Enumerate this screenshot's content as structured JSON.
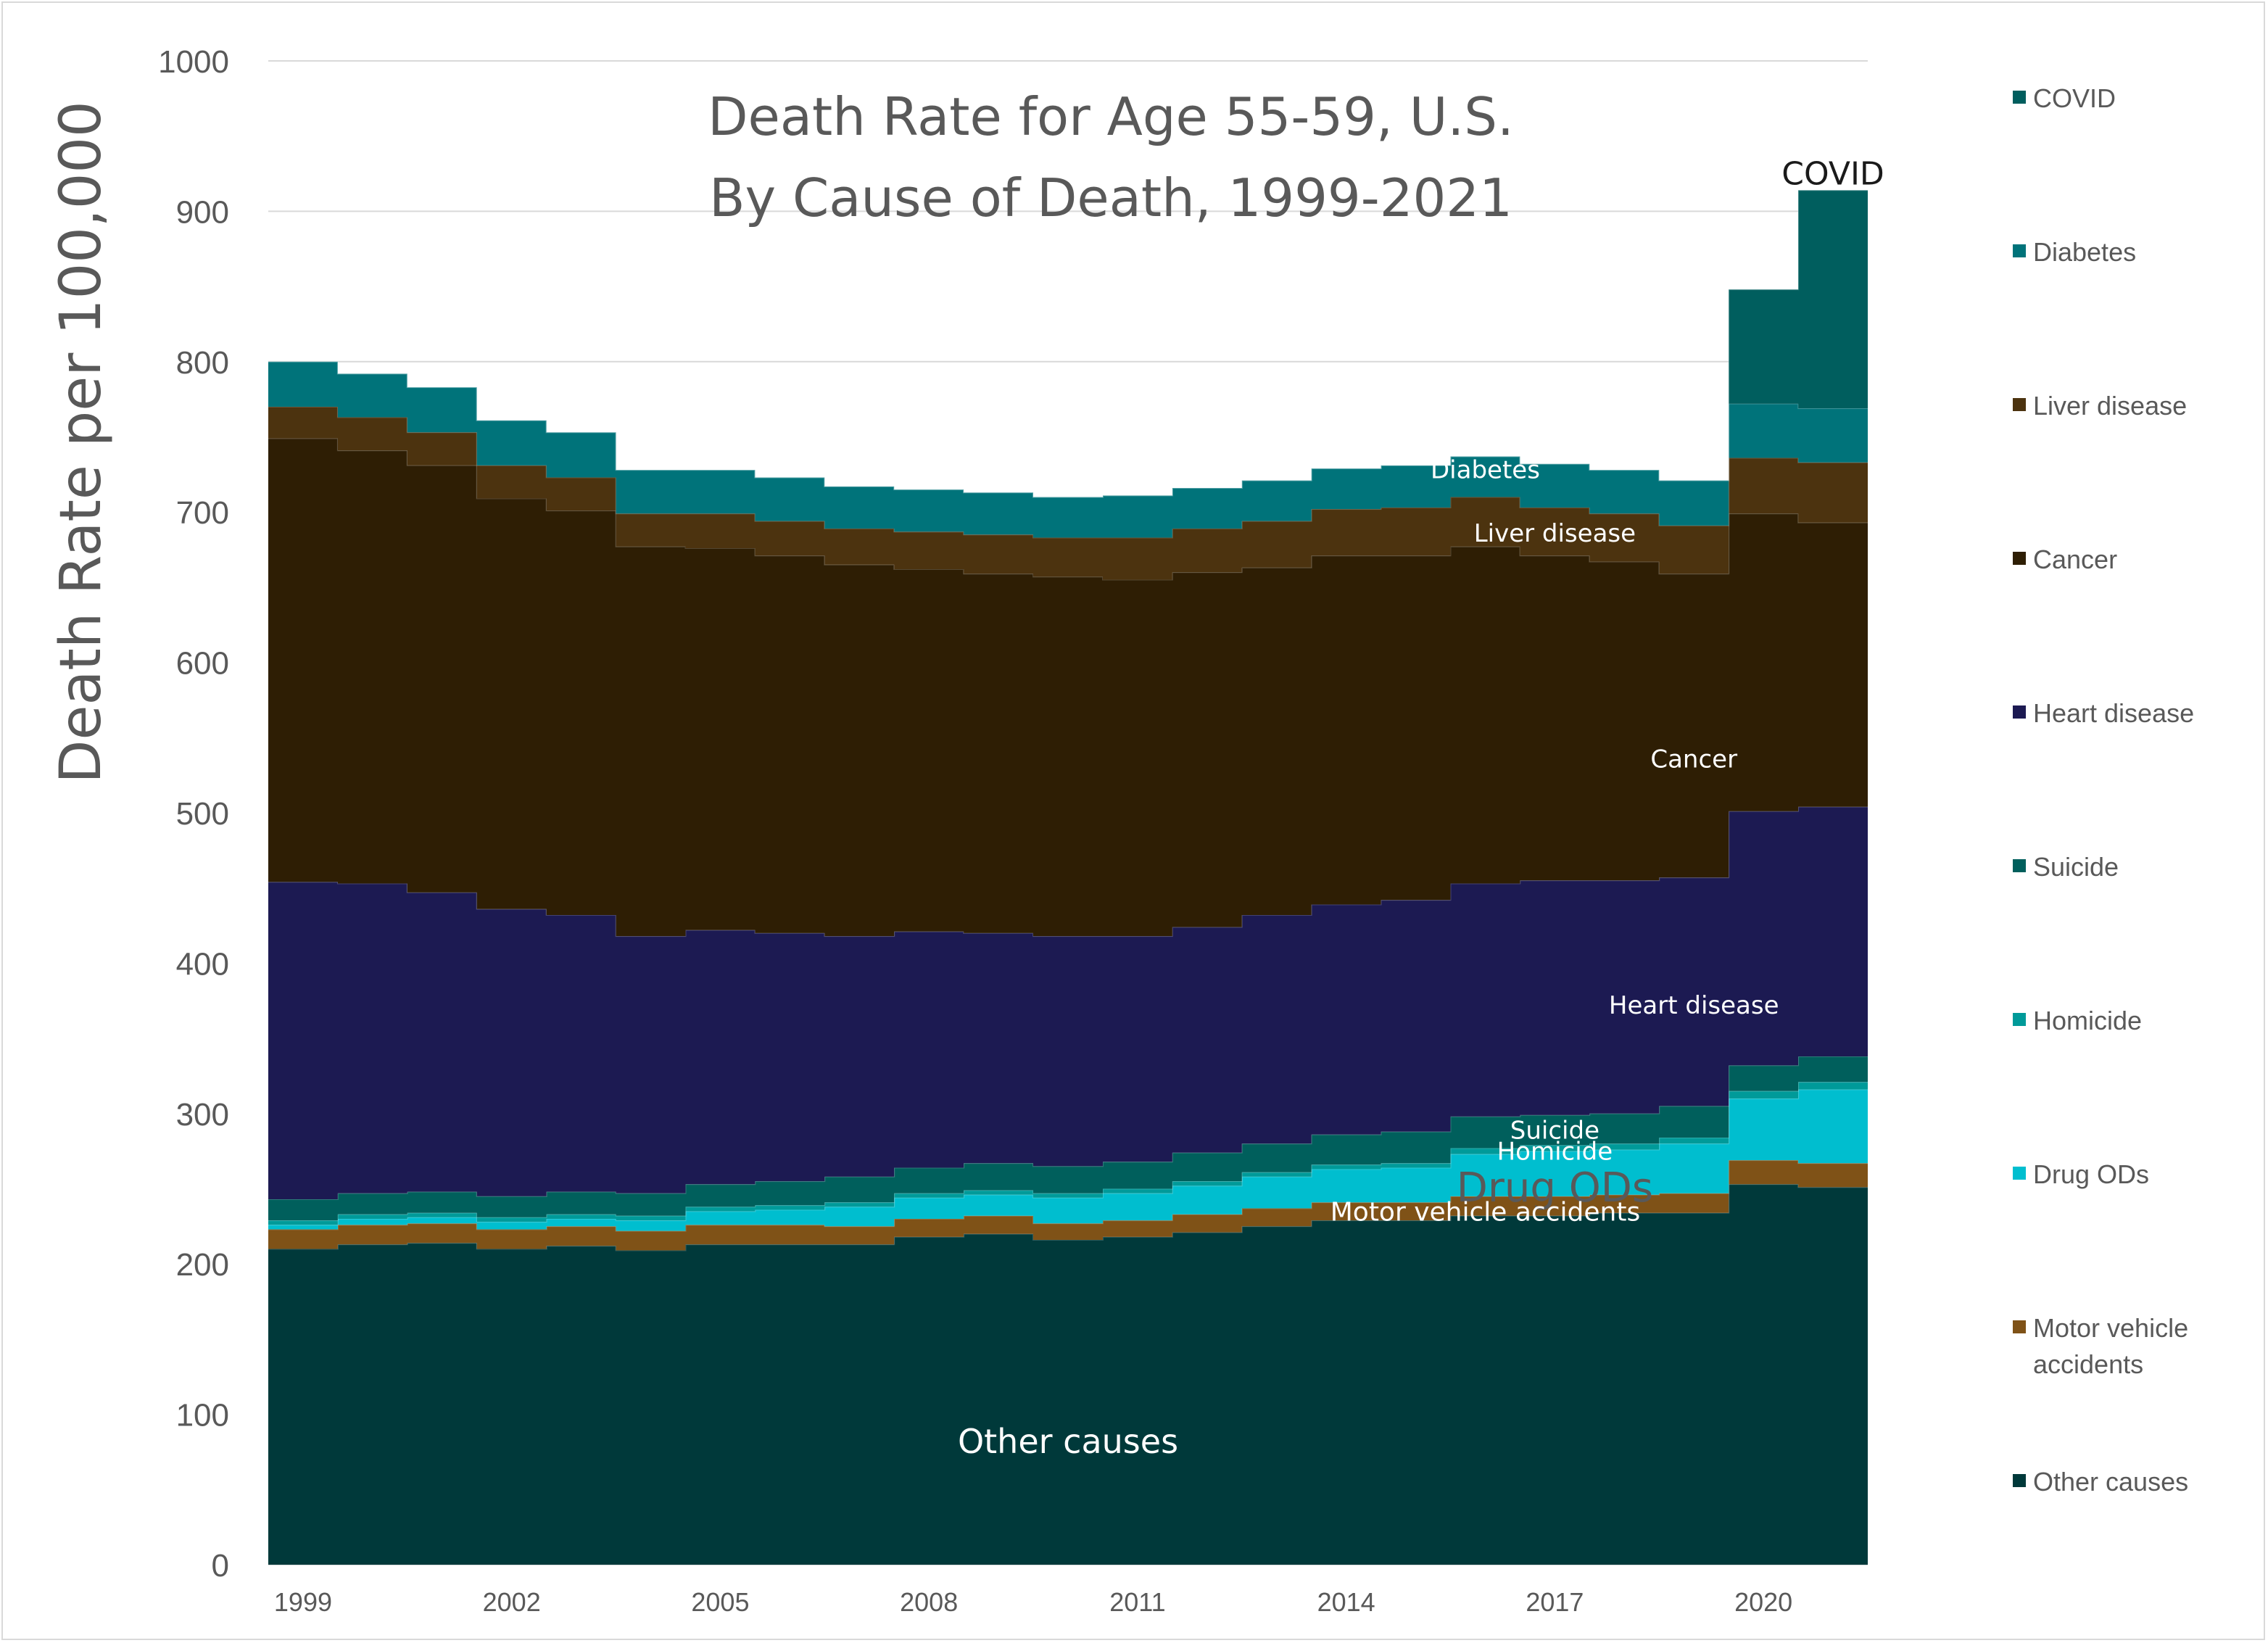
{
  "chart_data": {
    "type": "area",
    "title": [
      "Death Rate for Age 55-59, U.S.",
      "By Cause of Death, 1999-2021"
    ],
    "ylabel": "Death Rate per 100,000",
    "xlabel": "",
    "ylim": [
      0,
      1000
    ],
    "yticks": [
      "0",
      "100",
      "200",
      "300",
      "400",
      "500",
      "600",
      "700",
      "800",
      "900",
      "1000"
    ],
    "x": [
      1999,
      2000,
      2001,
      2002,
      2003,
      2004,
      2005,
      2006,
      2007,
      2008,
      2009,
      2010,
      2011,
      2012,
      2013,
      2014,
      2015,
      2016,
      2017,
      2018,
      2019,
      2020,
      2021
    ],
    "xtick_labels": [
      "1999",
      "2002",
      "2005",
      "2008",
      "2011",
      "2014",
      "2017",
      "2020"
    ],
    "grid": "horizontal",
    "stacked": true,
    "step": true,
    "legend_position": "right",
    "series": [
      {
        "name": "Other causes",
        "color": "#00393A",
        "values": [
          210,
          213,
          214,
          210,
          212,
          209,
          213,
          213,
          213,
          218,
          220,
          216,
          218,
          221,
          225,
          229,
          229,
          232,
          232,
          234,
          234,
          253,
          251
        ]
      },
      {
        "name": "Motor vehicle accidents",
        "color": "#7F5217",
        "values": [
          13,
          13,
          13,
          13,
          13,
          13,
          13,
          13,
          12,
          12,
          12,
          11,
          11,
          12,
          12,
          12,
          12,
          13,
          13,
          12,
          13,
          16,
          16
        ]
      },
      {
        "name": "Drug ODs",
        "color": "#00BECF",
        "values": [
          3,
          4,
          4,
          5,
          5,
          7,
          9,
          10,
          13,
          14,
          14,
          17,
          18,
          19,
          21,
          22,
          23,
          28,
          30,
          30,
          33,
          41,
          49
        ]
      },
      {
        "name": "Homicide",
        "color": "#009A99",
        "values": [
          3,
          3,
          3,
          3,
          3,
          3,
          3,
          3,
          3,
          3,
          3,
          3,
          3,
          3,
          3,
          3,
          3,
          4,
          4,
          4,
          4,
          5,
          5
        ]
      },
      {
        "name": "Suicide",
        "color": "#005F5C",
        "values": [
          14,
          14,
          14,
          14,
          15,
          15,
          15,
          16,
          17,
          17,
          18,
          18,
          18,
          19,
          19,
          20,
          21,
          21,
          20,
          20,
          21,
          17,
          17
        ]
      },
      {
        "name": "Heart disease",
        "color": "#1C1A52",
        "values": [
          211,
          206,
          199,
          191,
          184,
          171,
          169,
          165,
          160,
          157,
          153,
          153,
          150,
          150,
          152,
          153,
          154,
          155,
          156,
          155,
          152,
          169,
          166
        ]
      },
      {
        "name": "Cancer",
        "color": "#2E1E04",
        "values": [
          295,
          288,
          284,
          273,
          269,
          259,
          254,
          251,
          247,
          241,
          239,
          239,
          237,
          236,
          231,
          232,
          229,
          224,
          216,
          212,
          202,
          198,
          189
        ]
      },
      {
        "name": "Liver disease",
        "color": "#4C330F",
        "values": [
          21,
          22,
          22,
          22,
          22,
          22,
          23,
          23,
          24,
          25,
          26,
          26,
          28,
          29,
          31,
          31,
          32,
          33,
          32,
          32,
          32,
          37,
          40
        ]
      },
      {
        "name": "Diabetes",
        "color": "#00737A",
        "values": [
          30,
          29,
          30,
          30,
          30,
          29,
          29,
          29,
          28,
          28,
          28,
          27,
          28,
          27,
          27,
          27,
          28,
          27,
          29,
          29,
          30,
          36,
          36
        ]
      },
      {
        "name": "COVID",
        "color": "#005E5E",
        "values": [
          0,
          0,
          0,
          0,
          0,
          0,
          0,
          0,
          0,
          0,
          0,
          0,
          0,
          0,
          0,
          0,
          0,
          0,
          0,
          0,
          0,
          76,
          145
        ]
      }
    ],
    "annotations": [
      {
        "text": "COVID",
        "series": "COVID"
      },
      {
        "text": "Diabetes",
        "series": "Diabetes"
      },
      {
        "text": "Liver disease",
        "series": "Liver disease"
      },
      {
        "text": "Cancer",
        "series": "Cancer"
      },
      {
        "text": "Heart disease",
        "series": "Heart disease"
      },
      {
        "text": "Suicide",
        "series": "Suicide"
      },
      {
        "text": "Homicide",
        "series": "Homicide"
      },
      {
        "text": "Drug ODs",
        "series": "Drug ODs"
      },
      {
        "text": "Motor vehicle accidents",
        "series": "Motor vehicle accidents"
      },
      {
        "text": "Other causes",
        "series": "Other causes"
      }
    ],
    "legend": [
      {
        "label": "COVID",
        "color": "#005E5E"
      },
      {
        "label": "Diabetes",
        "color": "#00737A"
      },
      {
        "label": "Liver disease",
        "color": "#4C330F"
      },
      {
        "label": "Cancer",
        "color": "#2E1E04"
      },
      {
        "label": "Heart disease",
        "color": "#1C1A52"
      },
      {
        "label": "Suicide",
        "color": "#005F5C"
      },
      {
        "label": "Homicide",
        "color": "#009A99"
      },
      {
        "label": "Drug ODs",
        "color": "#00BECF"
      },
      {
        "label": "Motor vehicle accidents",
        "color": "#7F5217",
        "lines": [
          "Motor vehicle",
          "accidents"
        ]
      },
      {
        "label": "Other causes",
        "color": "#00393A"
      }
    ]
  }
}
